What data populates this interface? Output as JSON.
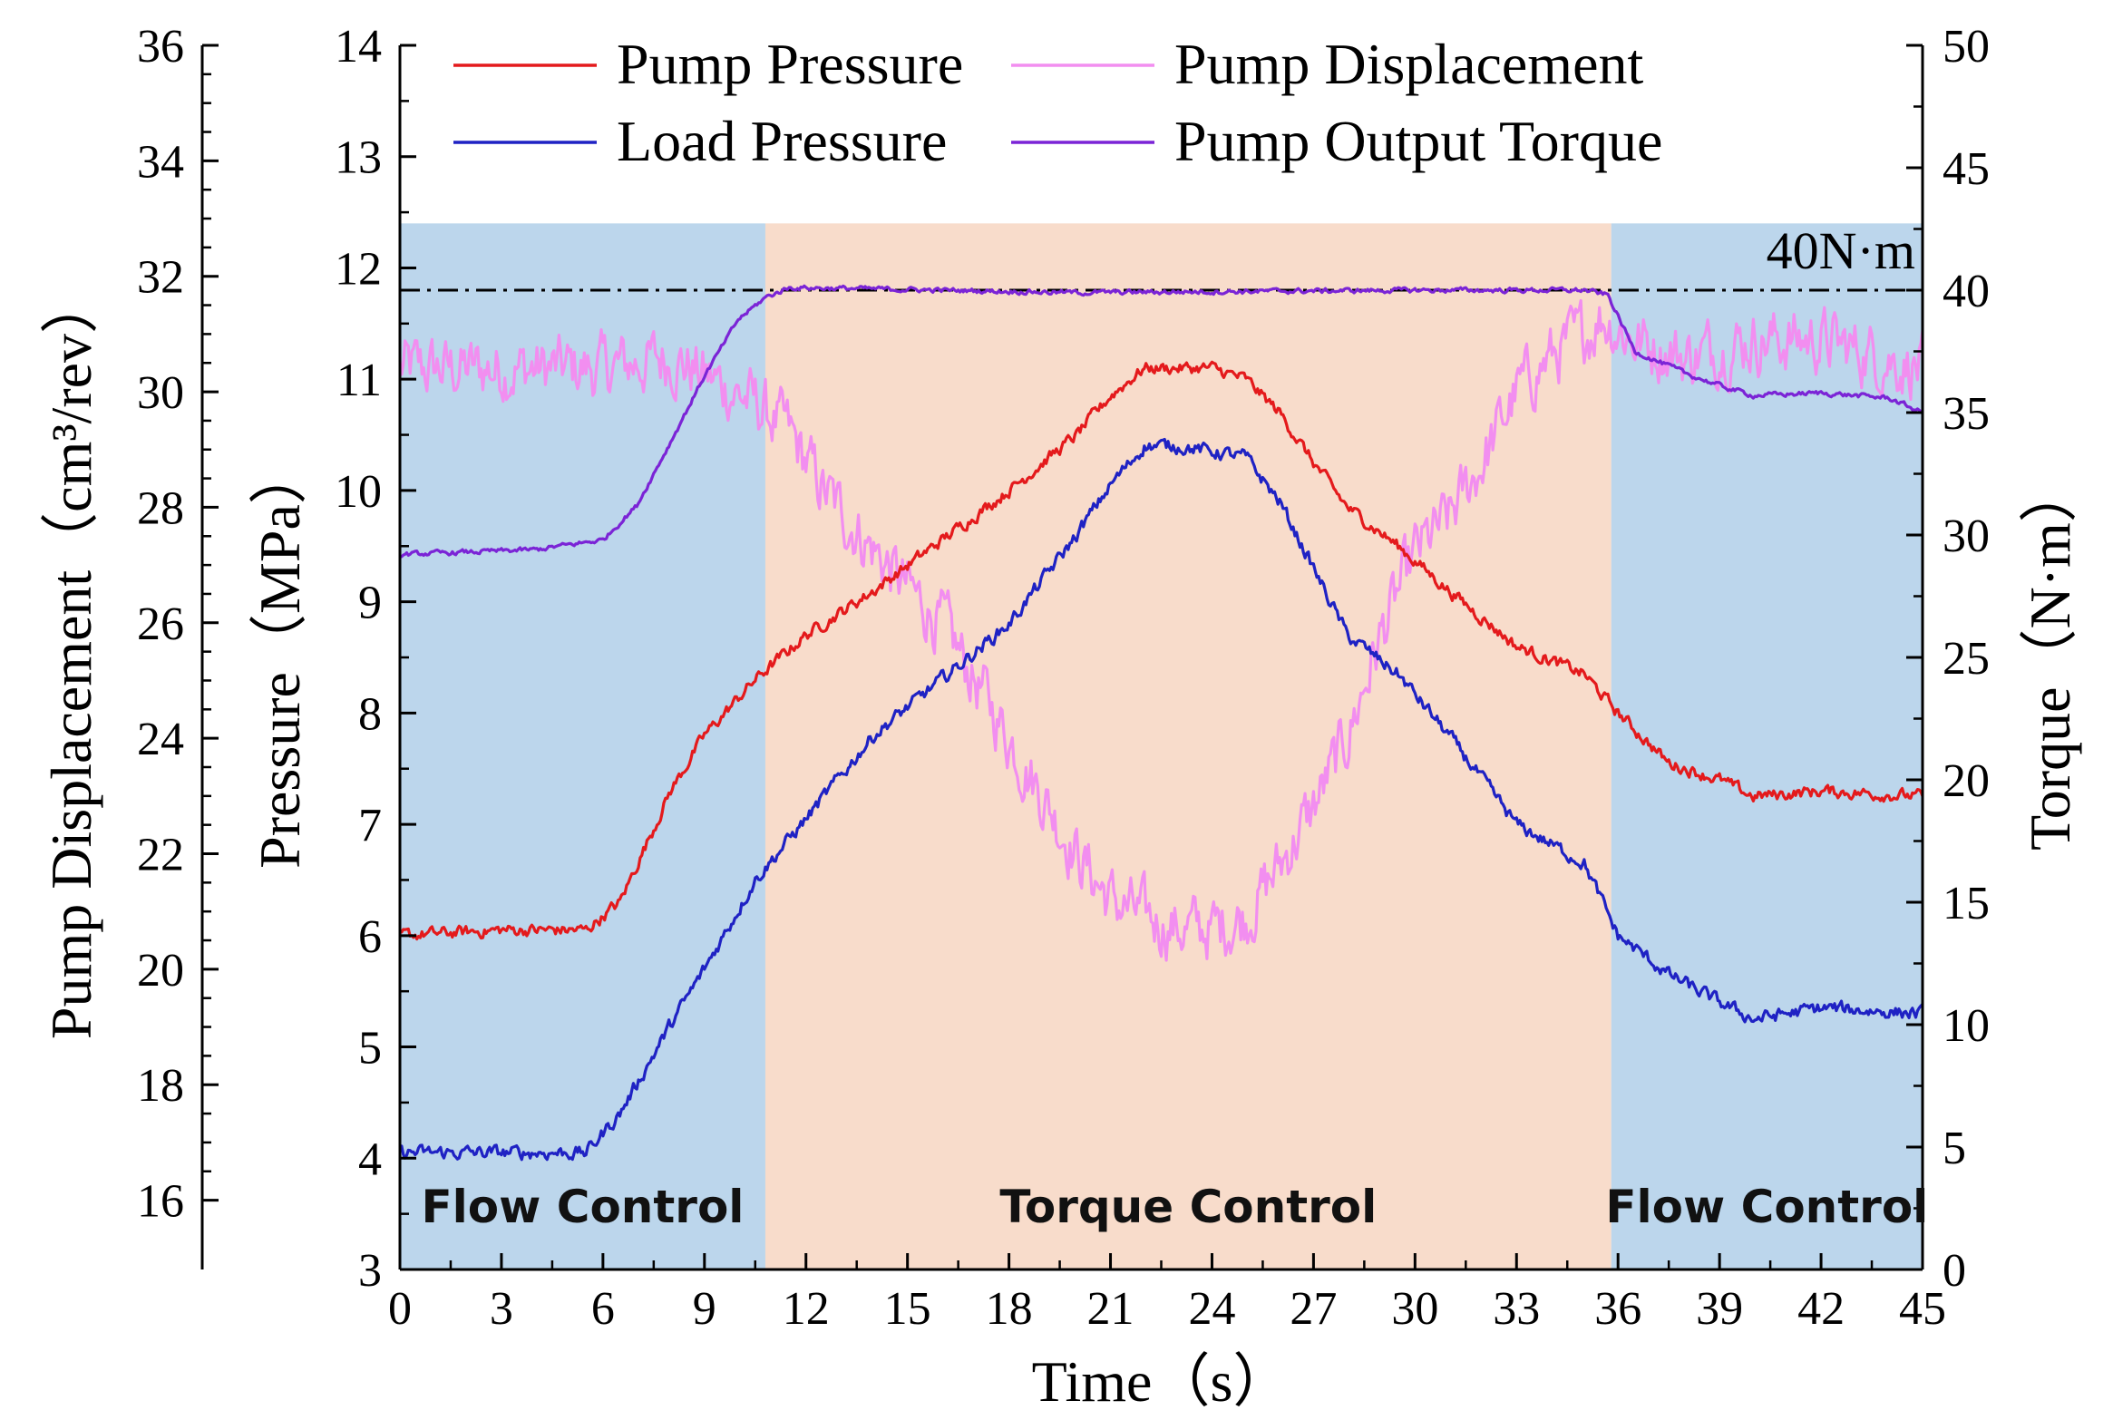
{
  "chart_data": {
    "type": "line",
    "xlabel": "Time（s）",
    "ylabel_left_outer": "Pump Displacement（cm³/rev）",
    "ylabel_left_inner": "Pressure（MPa）",
    "ylabel_right": "Torque（N·m）",
    "x_ticks": [
      "0",
      "3",
      "6",
      "9",
      "12",
      "15",
      "18",
      "21",
      "24",
      "27",
      "30",
      "33",
      "36",
      "39",
      "42",
      "45"
    ],
    "xlim": [
      0,
      45
    ],
    "pressure_ticks": [
      "3",
      "4",
      "5",
      "6",
      "7",
      "8",
      "9",
      "10",
      "11",
      "12",
      "13",
      "14"
    ],
    "pressure_lim": [
      3,
      14
    ],
    "displacement_ticks": [
      "16",
      "18",
      "20",
      "22",
      "24",
      "26",
      "28",
      "30",
      "32",
      "34",
      "36"
    ],
    "displacement_lim": [
      14.8,
      36
    ],
    "torque_ticks": [
      "0",
      "5",
      "10",
      "15",
      "20",
      "25",
      "30",
      "35",
      "40",
      "45",
      "50"
    ],
    "torque_lim": [
      0,
      50
    ],
    "regions": [
      {
        "label": "Flow Control",
        "x0": 0,
        "x1": 10.8,
        "color": "#bcd6ec"
      },
      {
        "label": "Torque Control",
        "x0": 10.8,
        "x1": 35.8,
        "color": "#f8dccb"
      },
      {
        "label": "Flow Control",
        "x0": 35.8,
        "x1": 45,
        "color": "#bcd6ec"
      }
    ],
    "region_top_pressure": 12.4,
    "reference_line": {
      "label": "40N·m",
      "torque": 40
    },
    "series": [
      {
        "name": "Pump Pressure",
        "axis": "pressure",
        "color": "#e41a1c",
        "x": [
          0,
          3,
          5.5,
          6.5,
          8,
          9,
          10.5,
          12,
          14,
          16,
          18,
          20,
          21,
          22,
          23,
          24,
          25,
          26,
          27,
          28,
          29.5,
          31,
          33,
          35,
          36,
          37.5,
          39,
          40,
          42,
          45
        ],
        "y": [
          6.0,
          6.05,
          6.05,
          6.3,
          7.3,
          7.8,
          8.3,
          8.7,
          9.1,
          9.55,
          10.0,
          10.5,
          10.85,
          11.1,
          11.1,
          11.1,
          11.0,
          10.7,
          10.25,
          9.85,
          9.5,
          9.1,
          8.6,
          8.35,
          8.0,
          7.55,
          7.4,
          7.25,
          7.3,
          7.25
        ],
        "noise": 0.045
      },
      {
        "name": "Load Pressure",
        "axis": "pressure",
        "color": "#1f22c4",
        "x": [
          0,
          3,
          5.5,
          6.5,
          8,
          9,
          10.5,
          12,
          14,
          16,
          18,
          20,
          21,
          22,
          23,
          24,
          25,
          26,
          27,
          28,
          29.5,
          31,
          33,
          35,
          36,
          37.5,
          39,
          40,
          42,
          45
        ],
        "y": [
          4.05,
          4.05,
          4.05,
          4.4,
          5.2,
          5.7,
          6.5,
          7.05,
          7.8,
          8.3,
          8.8,
          9.6,
          10.05,
          10.4,
          10.4,
          10.35,
          10.3,
          9.9,
          9.3,
          8.7,
          8.35,
          7.8,
          7.0,
          6.65,
          6.0,
          5.65,
          5.4,
          5.25,
          5.35,
          5.3
        ],
        "noise": 0.05
      },
      {
        "name": "Pump Displacement",
        "axis": "displacement",
        "color": "#f28ef0",
        "x": [
          0,
          3,
          6,
          8,
          10.5,
          11.5,
          12.5,
          13.5,
          15,
          16,
          17,
          18,
          19,
          20,
          21,
          22,
          23,
          24,
          25,
          26,
          27,
          28,
          29,
          30,
          31,
          32,
          33,
          34,
          35,
          35.5,
          36.5,
          38,
          40,
          42,
          45
        ],
        "y": [
          30.4,
          30.4,
          30.4,
          30.6,
          29.8,
          29.3,
          28.3,
          27.6,
          26.6,
          26.0,
          25.0,
          24.0,
          23.0,
          22.0,
          21.2,
          20.9,
          20.7,
          20.7,
          20.9,
          21.8,
          22.8,
          24.0,
          25.8,
          27.2,
          27.8,
          28.8,
          30.0,
          30.6,
          31.0,
          31.3,
          30.9,
          30.6,
          30.9,
          30.9,
          30.4
        ],
        "noise": 0.45
      },
      {
        "name": "Pump Output Torque",
        "axis": "torque",
        "color": "#7b24d6",
        "x": [
          0,
          2,
          4,
          6,
          7,
          8,
          9,
          10,
          10.8,
          11.5,
          12,
          20,
          30,
          35,
          35.7,
          36.5,
          38,
          39,
          40,
          42,
          44,
          45
        ],
        "y": [
          29.2,
          29.3,
          29.4,
          29.8,
          31.2,
          33.8,
          36.5,
          38.8,
          39.7,
          40.1,
          40.1,
          39.9,
          40.0,
          40.0,
          39.8,
          37.5,
          36.6,
          36.1,
          35.7,
          35.8,
          35.6,
          35.0
        ],
        "noise": 0.08
      }
    ],
    "legend_placement": "top-center",
    "grid": false
  }
}
